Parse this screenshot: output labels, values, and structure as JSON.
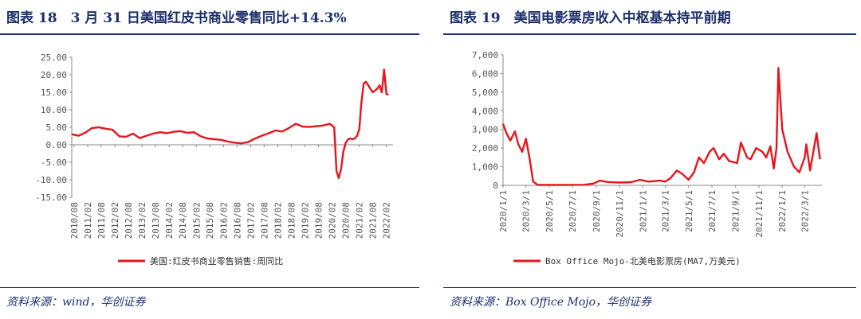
{
  "left": {
    "title": "图表 18　3 月 31 日美国红皮书商业零售同比+14.3%",
    "source": "资料来源：wind，华创证券"
  },
  "right": {
    "title": "图表 19　美国电影票房收入中枢基本持平前期",
    "source": "资料来源：Box Office Mojo，华创证券"
  },
  "colors": {
    "line": "#e8141b",
    "title": "#1b2f6b",
    "axis": "#888888"
  },
  "chart_data": [
    {
      "type": "line",
      "title": "",
      "xlabel": "",
      "ylabel": "",
      "grid": false,
      "legend_position": "bottom",
      "ylim": [
        -15,
        25
      ],
      "y_ticks": [
        "25.00",
        "20.00",
        "15.00",
        "10.00",
        "5.00",
        "0.00",
        "-5.00",
        "-10.00",
        "-15.00"
      ],
      "x_range": [
        "2010-07",
        "2022-05"
      ],
      "x_ticks": [
        "2010/08",
        "2011/02",
        "2011/08",
        "2012/02",
        "2012/08",
        "2013/02",
        "2013/08",
        "2014/02",
        "2014/08",
        "2015/02",
        "2015/08",
        "2016/02",
        "2016/08",
        "2017/02",
        "2017/08",
        "2018/02",
        "2018/08",
        "2019/02",
        "2019/08",
        "2020/02",
        "2020/08",
        "2021/02",
        "2021/08",
        "2022/02"
      ],
      "series": [
        {
          "name": "美国:红皮书商业零售销售:周同比",
          "x": [
            "2010-07",
            "2010-10",
            "2011-01",
            "2011-04",
            "2011-07",
            "2011-10",
            "2012-01",
            "2012-04",
            "2012-07",
            "2012-10",
            "2013-01",
            "2013-04",
            "2013-07",
            "2013-10",
            "2014-01",
            "2014-04",
            "2014-07",
            "2014-10",
            "2015-01",
            "2015-04",
            "2015-07",
            "2015-10",
            "2016-01",
            "2016-04",
            "2016-07",
            "2016-10",
            "2017-01",
            "2017-04",
            "2017-07",
            "2017-10",
            "2018-01",
            "2018-04",
            "2018-07",
            "2018-10",
            "2019-01",
            "2019-04",
            "2019-07",
            "2019-10",
            "2020-01",
            "2020-03",
            "2020-04",
            "2020-05",
            "2020-06",
            "2020-07",
            "2020-08",
            "2020-09",
            "2020-10",
            "2020-11",
            "2020-12",
            "2021-01",
            "2021-02",
            "2021-03",
            "2021-04",
            "2021-05",
            "2021-06",
            "2021-07",
            "2021-08",
            "2021-09",
            "2021-10",
            "2021-11",
            "2021-12",
            "2022-01",
            "2022-02",
            "2022-03"
          ],
          "values": [
            3.0,
            2.6,
            3.5,
            4.8,
            5.0,
            4.6,
            4.3,
            2.4,
            2.3,
            3.2,
            1.9,
            2.6,
            3.2,
            3.6,
            3.3,
            3.7,
            3.9,
            3.4,
            3.6,
            2.4,
            1.8,
            1.6,
            1.4,
            0.9,
            0.6,
            0.4,
            0.8,
            1.8,
            2.6,
            3.3,
            4.1,
            3.8,
            4.8,
            6.0,
            5.2,
            5.1,
            5.3,
            5.5,
            6.0,
            5.0,
            -7.5,
            -9.5,
            -7.0,
            -2.0,
            0.5,
            1.5,
            1.8,
            1.6,
            1.8,
            2.5,
            4.5,
            12.0,
            17.5,
            18.0,
            17.0,
            16.0,
            15.0,
            15.5,
            16.0,
            17.0,
            15.0,
            21.5,
            14.5,
            14.3
          ]
        }
      ]
    },
    {
      "type": "line",
      "title": "",
      "xlabel": "",
      "ylabel": "",
      "grid": false,
      "legend_position": "bottom",
      "ylim": [
        0,
        7000
      ],
      "y_ticks": [
        "7,000",
        "6,000",
        "5,000",
        "4,000",
        "3,000",
        "2,000",
        "1,000",
        "0"
      ],
      "x_range": [
        "2020-01-01",
        "2022-04-15"
      ],
      "x_ticks": [
        "2020/1/1",
        "2020/3/1",
        "2020/5/1",
        "2020/7/1",
        "2020/9/1",
        "2020/11/1",
        "2021/1/1",
        "2021/3/1",
        "2021/5/1",
        "2021/7/1",
        "2021/9/1",
        "2021/11/1",
        "2022/1/1",
        "2022/3/1"
      ],
      "series": [
        {
          "name": "Box Office Mojo-北美电影票房(MA7,万美元)",
          "x": [
            "2020-01-01",
            "2020-01-10",
            "2020-01-20",
            "2020-02-01",
            "2020-02-10",
            "2020-02-20",
            "2020-03-01",
            "2020-03-10",
            "2020-03-20",
            "2020-04-01",
            "2020-06-01",
            "2020-08-01",
            "2020-08-25",
            "2020-09-10",
            "2020-10-01",
            "2020-11-01",
            "2020-12-01",
            "2020-12-25",
            "2021-01-15",
            "2021-02-15",
            "2021-03-01",
            "2021-03-15",
            "2021-03-31",
            "2021-04-15",
            "2021-05-01",
            "2021-05-15",
            "2021-05-28",
            "2021-06-10",
            "2021-06-25",
            "2021-07-05",
            "2021-07-20",
            "2021-08-01",
            "2021-08-15",
            "2021-09-05",
            "2021-09-15",
            "2021-10-01",
            "2021-10-10",
            "2021-10-25",
            "2021-11-10",
            "2021-11-20",
            "2021-12-01",
            "2021-12-10",
            "2021-12-17",
            "2021-12-22",
            "2022-01-01",
            "2022-01-15",
            "2022-02-01",
            "2022-02-15",
            "2022-03-01",
            "2022-03-05",
            "2022-03-15",
            "2022-04-01",
            "2022-04-10"
          ],
          "values": [
            3300,
            2800,
            2400,
            2900,
            2200,
            1800,
            2500,
            1500,
            200,
            20,
            20,
            30,
            100,
            250,
            180,
            150,
            170,
            300,
            200,
            250,
            200,
            400,
            800,
            600,
            300,
            700,
            1500,
            1200,
            1800,
            2000,
            1400,
            1700,
            1300,
            1200,
            2300,
            1500,
            1400,
            2000,
            1800,
            1500,
            2100,
            900,
            2000,
            6300,
            3000,
            1800,
            1000,
            700,
            1500,
            2200,
            800,
            2800,
            1400
          ]
        }
      ]
    }
  ]
}
